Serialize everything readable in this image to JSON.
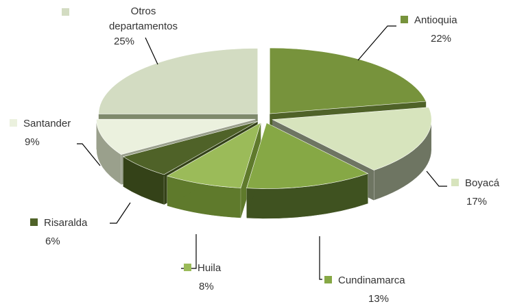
{
  "chart_data": {
    "type": "pie",
    "categories": [
      "Antioquia",
      "Boyacá",
      "Cundinamarca",
      "Huila",
      "Risaralda",
      "Santander",
      "Otros departamentos"
    ],
    "values": [
      22,
      17,
      13,
      8,
      6,
      9,
      25
    ],
    "value_labels": [
      "22%",
      "17%",
      "13%",
      "8%",
      "6%",
      "9%",
      "25%"
    ],
    "colors": [
      "#77933c",
      "#d7e4bd",
      "#86a845",
      "#9bbb59",
      "#4f6228",
      "#ebf1de",
      "#d3dcc2"
    ],
    "side_colors": [
      "#4f6228",
      "#6e7562",
      "#3f5220",
      "#5f7a2c",
      "#344218",
      "#9aa08c",
      "#7f8a6c"
    ]
  }
}
